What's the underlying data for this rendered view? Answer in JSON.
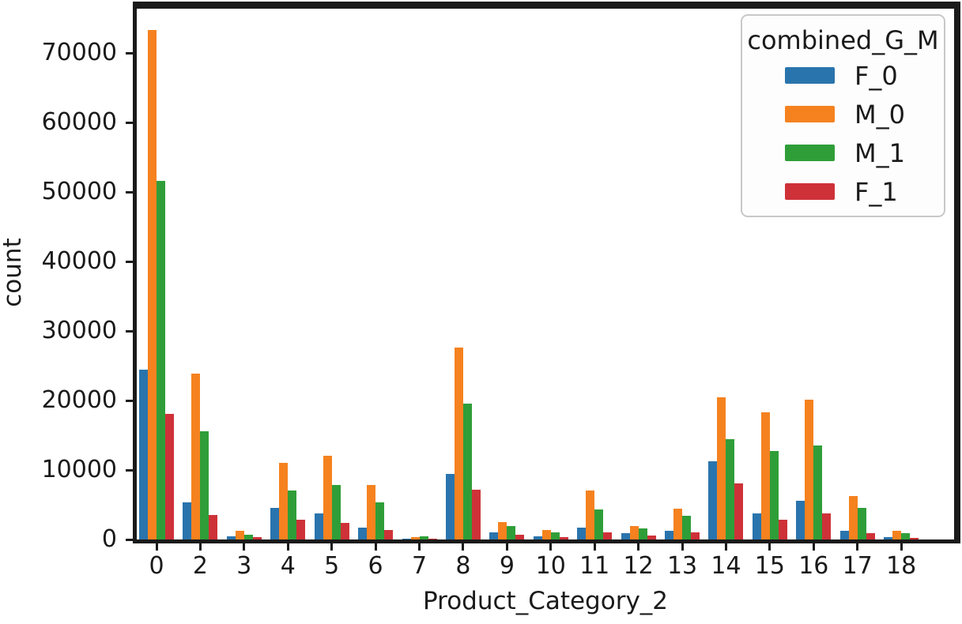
{
  "style": {
    "background": "#ffffff",
    "spine_color": "#1a1a1a",
    "text_color": "#1a1a1a",
    "legend_border_color": "#c8c8c8"
  },
  "chart_data": {
    "type": "bar",
    "title": "",
    "xlabel": "Product_Category_2",
    "ylabel": "count",
    "categories": [
      "0",
      "2",
      "3",
      "4",
      "5",
      "6",
      "7",
      "8",
      "9",
      "10",
      "11",
      "12",
      "13",
      "14",
      "15",
      "16",
      "17",
      "18"
    ],
    "series": [
      {
        "name": "F_0",
        "color": "#2a74ad",
        "values": [
          24400,
          5300,
          400,
          4600,
          3800,
          1700,
          100,
          9400,
          1000,
          400,
          1700,
          900,
          1300,
          11300,
          3800,
          5600,
          1300,
          300
        ]
      },
      {
        "name": "M_0",
        "color": "#f5821f",
        "values": [
          73300,
          23900,
          1300,
          11000,
          12100,
          7800,
          300,
          27600,
          2500,
          1400,
          7100,
          1900,
          4400,
          20500,
          18300,
          20100,
          6300,
          1300
        ]
      },
      {
        "name": "M_1",
        "color": "#2f9e38",
        "values": [
          51600,
          15600,
          700,
          7000,
          7900,
          5300,
          500,
          19500,
          1900,
          1000,
          4300,
          1600,
          3400,
          14400,
          12700,
          13500,
          4500,
          900
        ]
      },
      {
        "name": "F_1",
        "color": "#ce3238",
        "values": [
          18100,
          3500,
          300,
          2800,
          2400,
          1400,
          100,
          7200,
          650,
          300,
          1000,
          600,
          1000,
          8100,
          2800,
          3800,
          900,
          200
        ]
      }
    ],
    "legend": {
      "title": "combined_G_M",
      "position": "upper right",
      "entries": [
        "F_0",
        "M_0",
        "M_1",
        "F_1"
      ]
    },
    "ylim": [
      0,
      76400
    ],
    "yticks": [
      0,
      10000,
      20000,
      30000,
      40000,
      50000,
      60000,
      70000
    ],
    "ytick_labels": [
      "0",
      "10000",
      "20000",
      "30000",
      "40000",
      "50000",
      "60000",
      "70000"
    ],
    "grid": false,
    "bar_group_width": 0.8
  }
}
